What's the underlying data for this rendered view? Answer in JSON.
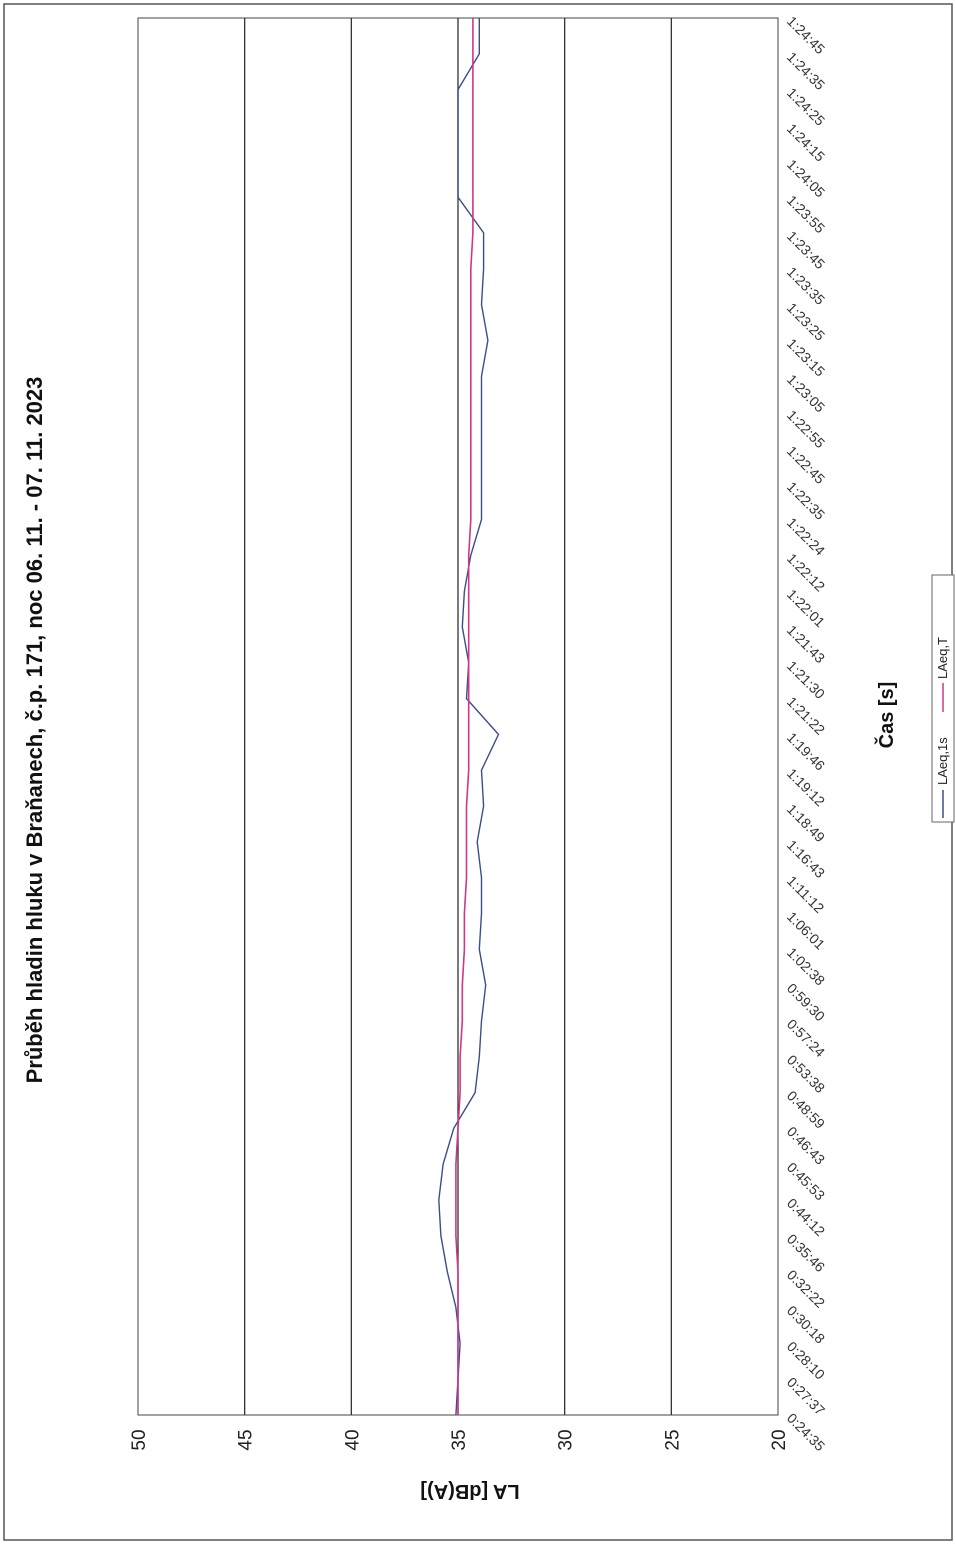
{
  "chart_data": {
    "type": "line",
    "title": "Průběh hladin hluku v Braňanech, č.p. 171, noc 06. 11. - 07. 11. 2023",
    "xlabel": "Čas [s]",
    "ylabel": "LA [dB(A)]",
    "ylim": [
      20,
      50
    ],
    "yticks": [
      "20",
      "25",
      "30",
      "35",
      "40",
      "45",
      "50"
    ],
    "grid": true,
    "legend": "bottom",
    "x": [
      "0:24:35",
      "0:27:37",
      "0:28:10",
      "0:30:18",
      "0:32:22",
      "0:35:46",
      "0:44:12",
      "0:45:53",
      "0:46:43",
      "0:48:59",
      "0:53:38",
      "0:57:24",
      "0:59:30",
      "1:02:38",
      "1:06:01",
      "1:11:12",
      "1:16:43",
      "1:18:49",
      "1:19:12",
      "1:19:46",
      "1:21:22",
      "1:21:30",
      "1:21:43",
      "1:22:01",
      "1:22:12",
      "1:22:24",
      "1:22:35",
      "1:22:45",
      "1:22:55",
      "1:23:05",
      "1:23:15",
      "1:23:25",
      "1:23:35",
      "1:23:45",
      "1:23:55",
      "1:24:05",
      "1:24:15",
      "1:24:25",
      "1:24:35",
      "1:24:45"
    ],
    "series": [
      {
        "name": "LAeq,1s",
        "color": "#3a4f8a",
        "values": [
          35.1,
          35.0,
          34.9,
          35.1,
          35.5,
          35.8,
          35.9,
          35.7,
          35.2,
          34.2,
          34.0,
          33.9,
          33.7,
          34.0,
          33.9,
          33.9,
          34.1,
          33.8,
          33.9,
          33.1,
          34.6,
          34.5,
          34.8,
          34.7,
          34.4,
          33.9,
          33.9,
          33.9,
          33.9,
          33.9,
          33.6,
          33.9,
          33.8,
          33.8,
          35.0,
          35.0,
          35.0,
          35.0,
          34.0,
          34.0
        ]
      },
      {
        "name": "LAeq,T",
        "color": "#d0368a",
        "values": [
          35.0,
          35.0,
          35.0,
          35.0,
          35.0,
          35.1,
          35.1,
          35.1,
          35.0,
          34.9,
          34.9,
          34.8,
          34.8,
          34.7,
          34.7,
          34.6,
          34.6,
          34.6,
          34.5,
          34.5,
          34.5,
          34.5,
          34.5,
          34.5,
          34.5,
          34.4,
          34.4,
          34.4,
          34.4,
          34.4,
          34.4,
          34.4,
          34.4,
          34.3,
          34.3,
          34.3,
          34.3,
          34.3,
          34.3,
          34.3
        ]
      }
    ]
  }
}
